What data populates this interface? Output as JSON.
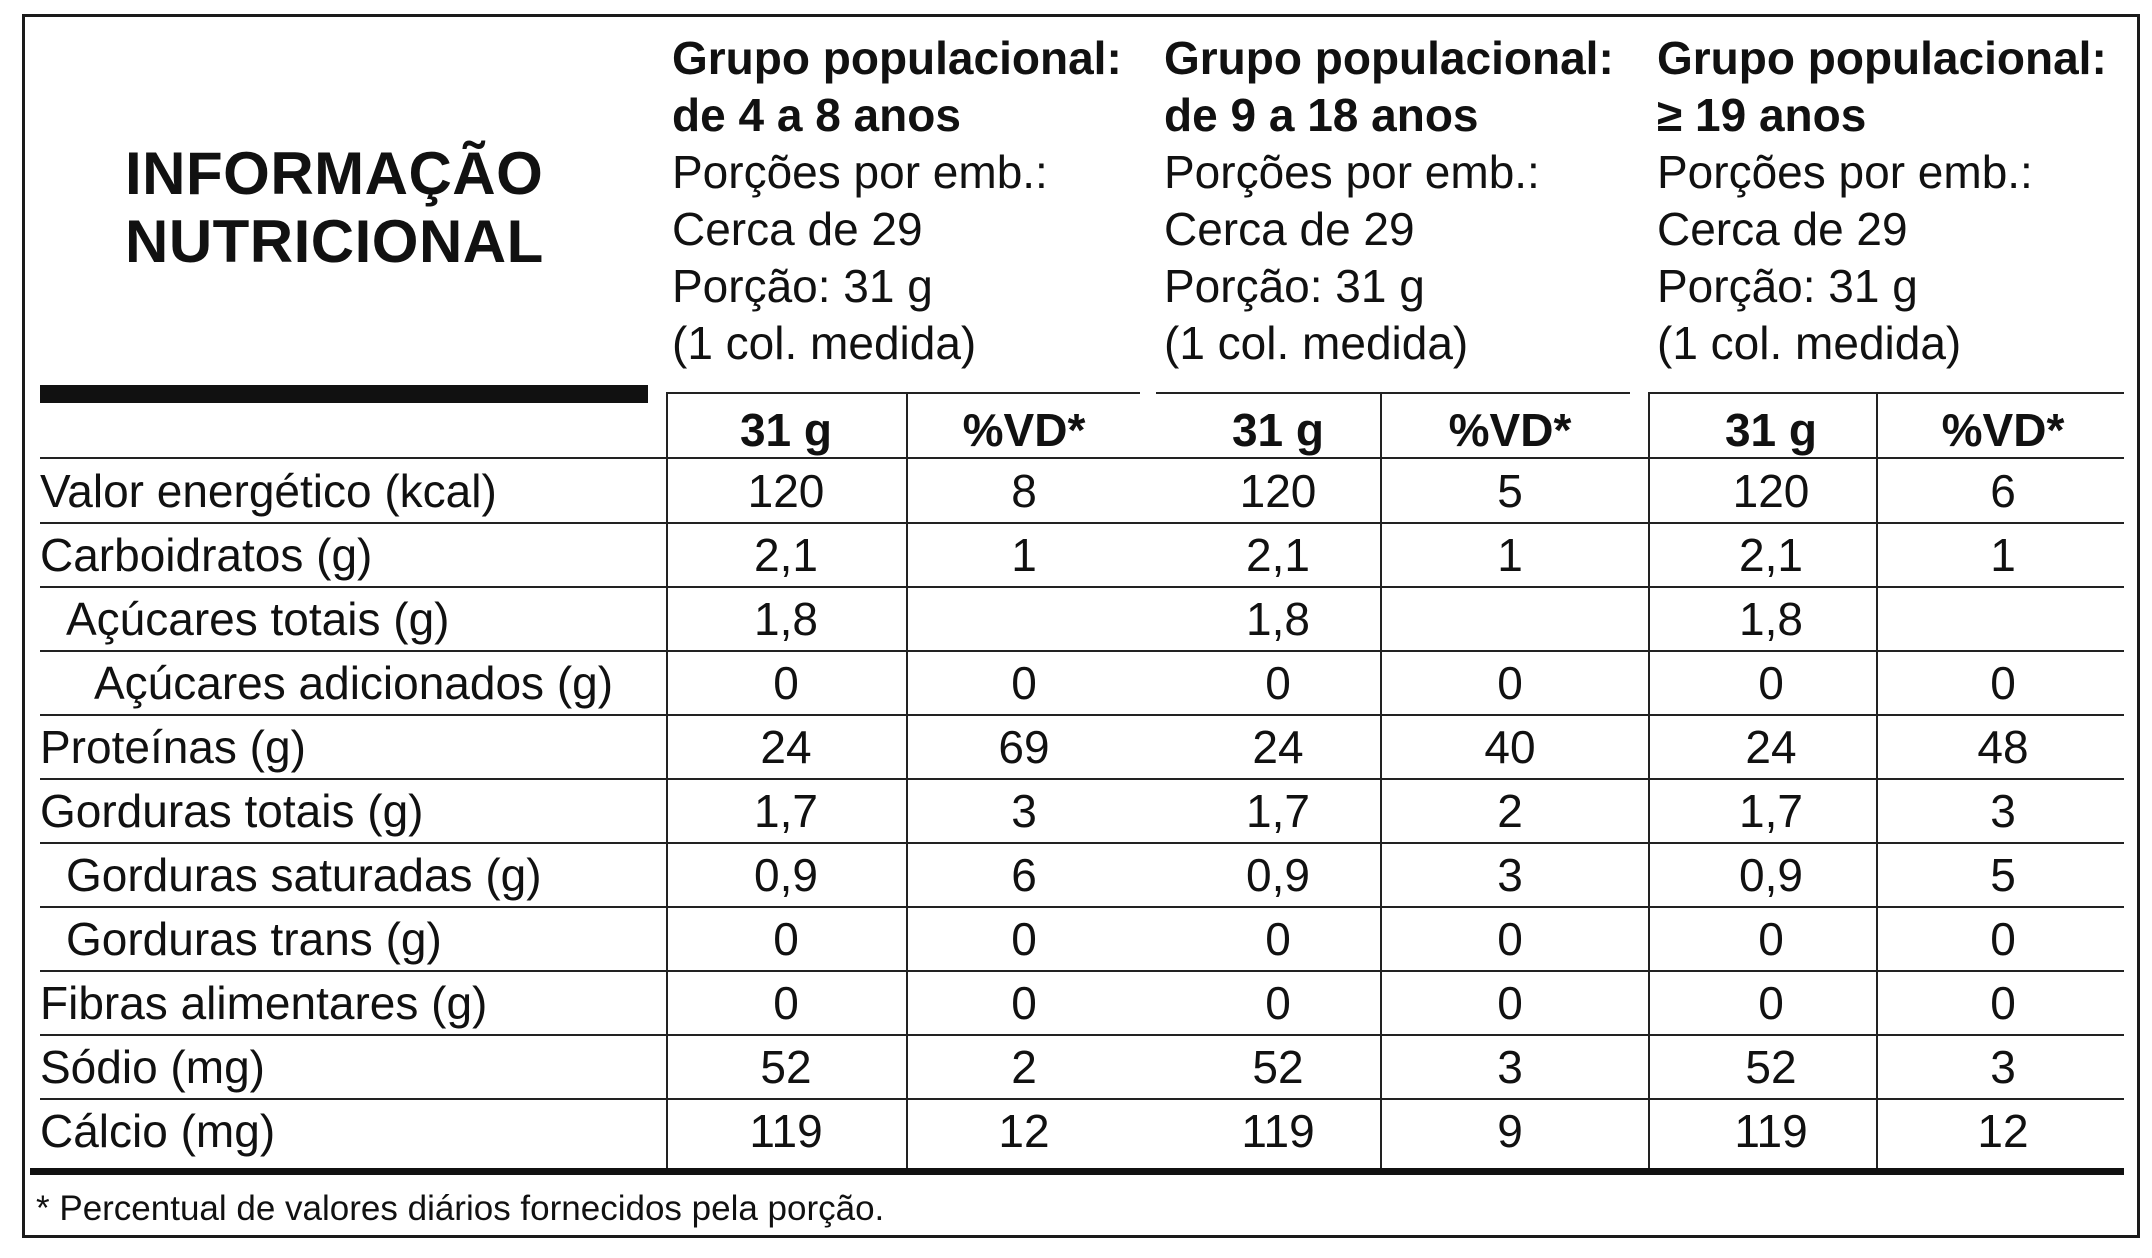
{
  "title": {
    "line1": "INFORMAÇÃO",
    "line2": "NUTRICIONAL"
  },
  "groups": [
    {
      "title1": "Grupo populacional:",
      "title2": "de 4 a 8 anos",
      "servings_label": "Porções por emb.:",
      "servings_value": "Cerca de 29",
      "portion": "Porção: 31 g",
      "measure": "(1 col. medida)",
      "col_amount": "31 g",
      "col_vd": "%VD*"
    },
    {
      "title1": "Grupo populacional:",
      "title2": "de 9 a 18 anos",
      "servings_label": "Porções por emb.:",
      "servings_value": "Cerca de 29",
      "portion": "Porção: 31 g",
      "measure": "(1 col. medida)",
      "col_amount": "31 g",
      "col_vd": "%VD*"
    },
    {
      "title1": "Grupo populacional:",
      "title2": "≥ 19 anos",
      "servings_label": "Porções por emb.:",
      "servings_value": "Cerca de 29",
      "portion": "Porção: 31 g",
      "measure": "(1 col. medida)",
      "col_amount": "31 g",
      "col_vd": "%VD*"
    }
  ],
  "rows": [
    {
      "label": "Valor energético (kcal)",
      "values": [
        "120",
        "8",
        "120",
        "5",
        "120",
        "6"
      ]
    },
    {
      "label": "Carboidratos (g)",
      "values": [
        "2,1",
        "1",
        "2,1",
        "1",
        "2,1",
        "1"
      ]
    },
    {
      "label": "Açúcares totais (g)",
      "values": [
        "1,8",
        "",
        "1,8",
        "",
        "1,8",
        ""
      ]
    },
    {
      "label": "Açúcares adicionados (g)",
      "values": [
        "0",
        "0",
        "0",
        "0",
        "0",
        "0"
      ]
    },
    {
      "label": "Proteínas (g)",
      "values": [
        "24",
        "69",
        "24",
        "40",
        "24",
        "48"
      ]
    },
    {
      "label": "Gorduras totais (g)",
      "values": [
        "1,7",
        "3",
        "1,7",
        "2",
        "1,7",
        "3"
      ]
    },
    {
      "label": "Gorduras saturadas (g)",
      "values": [
        "0,9",
        "6",
        "0,9",
        "3",
        "0,9",
        "5"
      ]
    },
    {
      "label": "Gorduras trans (g)",
      "values": [
        "0",
        "0",
        "0",
        "0",
        "0",
        "0"
      ]
    },
    {
      "label": "Fibras alimentares (g)",
      "values": [
        "0",
        "0",
        "0",
        "0",
        "0",
        "0"
      ]
    },
    {
      "label": "Sódio (mg)",
      "values": [
        "52",
        "2",
        "52",
        "3",
        "52",
        "3"
      ]
    },
    {
      "label": "Cálcio (mg)",
      "values": [
        "119",
        "12",
        "119",
        "9",
        "119",
        "12"
      ]
    }
  ],
  "footnote": "* Percentual de valores diários fornecidos pela porção."
}
